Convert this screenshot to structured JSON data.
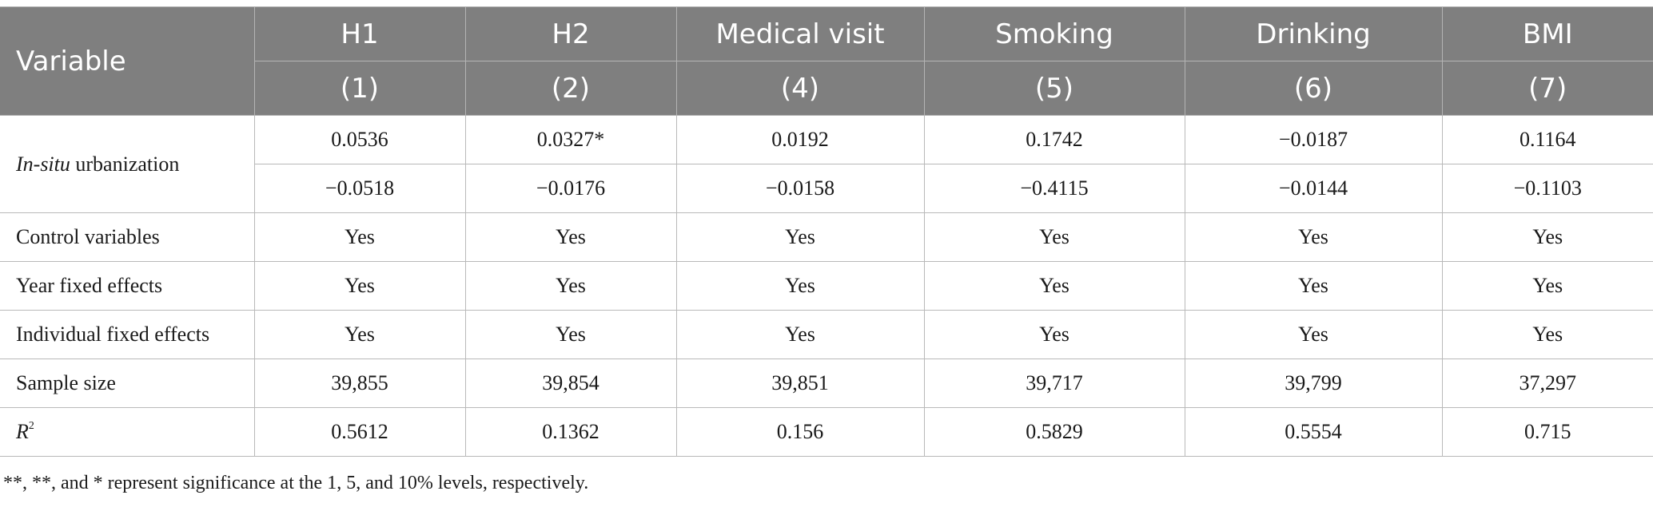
{
  "table": {
    "header": {
      "variable_label": "Variable",
      "columns": [
        "H1",
        "H2",
        "Medical visit",
        "Smoking",
        "Drinking",
        "BMI"
      ],
      "column_numbers": [
        "(1)",
        "(2)",
        "(4)",
        "(5)",
        "(6)",
        "(7)"
      ]
    },
    "rows": {
      "insitu": {
        "label_italic": "In-situ",
        "label_rest": " urbanization",
        "coef": [
          "0.0536",
          "0.0327*",
          "0.0192",
          "0.1742",
          "−0.0187",
          "0.1164"
        ],
        "se": [
          "−0.0518",
          "−0.0176",
          "−0.0158",
          "−0.4115",
          "−0.0144",
          "−0.1103"
        ]
      },
      "control": {
        "label": "Control variables",
        "values": [
          "Yes",
          "Yes",
          "Yes",
          "Yes",
          "Yes",
          "Yes"
        ]
      },
      "year_fe": {
        "label": "Year fixed effects",
        "values": [
          "Yes",
          "Yes",
          "Yes",
          "Yes",
          "Yes",
          "Yes"
        ]
      },
      "indiv_fe": {
        "label": "Individual fixed effects",
        "values": [
          "Yes",
          "Yes",
          "Yes",
          "Yes",
          "Yes",
          "Yes"
        ]
      },
      "sample": {
        "label": "Sample size",
        "values": [
          "39,855",
          "39,854",
          "39,851",
          "39,717",
          "39,799",
          "37,297"
        ]
      },
      "r2": {
        "label_main": "R",
        "label_sup": "2",
        "values": [
          "0.5612",
          "0.1362",
          "0.156",
          "0.5829",
          "0.5554",
          "0.715"
        ]
      }
    }
  },
  "footnote": "**, **, and * represent significance at the 1, 5, and 10% levels, respectively."
}
